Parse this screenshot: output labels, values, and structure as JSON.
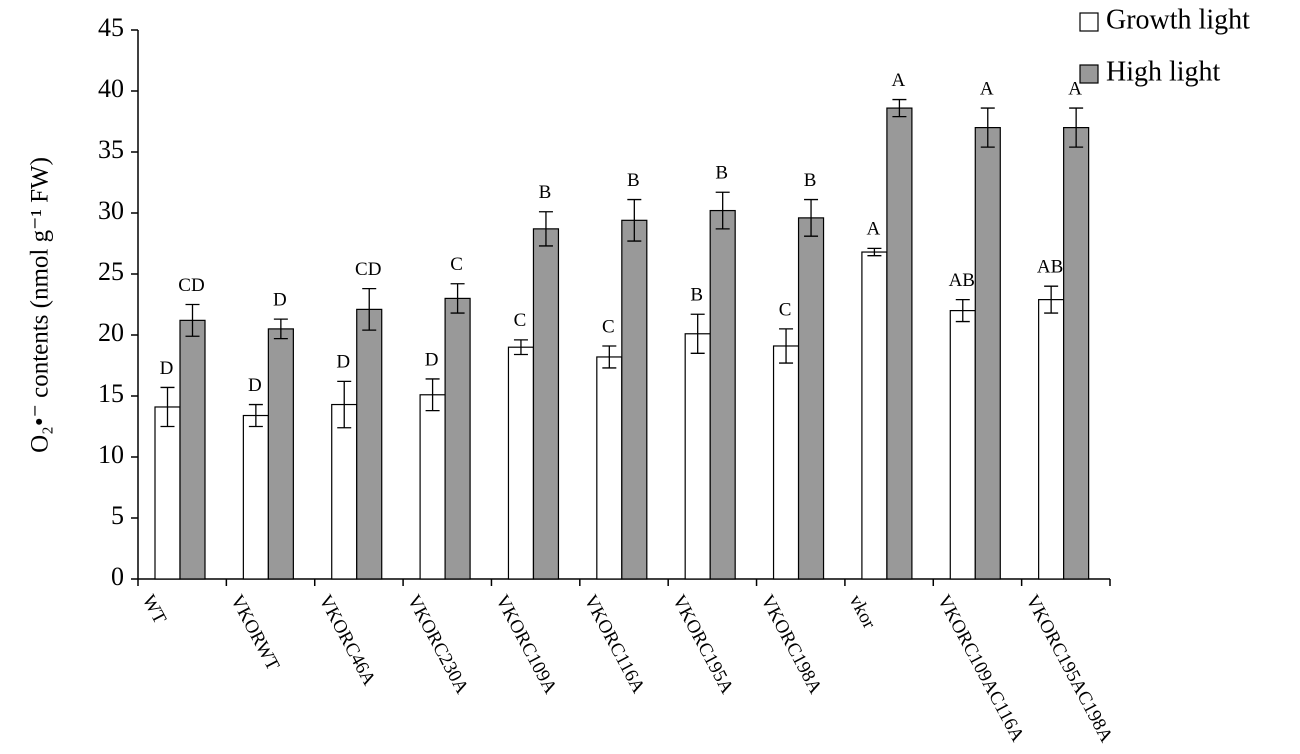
{
  "chart_data": {
    "type": "bar",
    "y_label": "O₂•⁻ contents (nmol g⁻¹ FW)",
    "categories": [
      "WT",
      "VKORWT",
      "VKORC46A",
      "VKORC230A",
      "VKORC109A",
      "VKORC116A",
      "VKORC195A",
      "VKORC198A",
      "vkor",
      "VKORC109AC116A",
      "VKORC195AC198A"
    ],
    "series": [
      {
        "name": "Growth light",
        "color": "#ffffff",
        "values": [
          14.1,
          13.4,
          14.3,
          15.1,
          19.0,
          18.2,
          20.1,
          19.1,
          26.8,
          22.0,
          22.9
        ],
        "errors": [
          1.6,
          0.9,
          1.9,
          1.3,
          0.6,
          0.9,
          1.6,
          1.4,
          0.3,
          0.9,
          1.1
        ],
        "letters": [
          "D",
          "D",
          "D",
          "D",
          "C",
          "C",
          "B",
          "C",
          "A",
          "AB",
          "AB"
        ]
      },
      {
        "name": "High light",
        "color": "#999999",
        "values": [
          21.2,
          20.5,
          22.1,
          23.0,
          28.7,
          29.4,
          30.2,
          29.6,
          38.6,
          37.0,
          37.0
        ],
        "errors": [
          1.3,
          0.8,
          1.7,
          1.2,
          1.4,
          1.7,
          1.5,
          1.5,
          0.7,
          1.6,
          1.6
        ],
        "letters": [
          "CD",
          "D",
          "CD",
          "C",
          "B",
          "B",
          "B",
          "B",
          "A",
          "A",
          "A"
        ]
      }
    ],
    "ylim": [
      0,
      45
    ],
    "yticks": [
      0,
      5,
      10,
      15,
      20,
      25,
      30,
      35,
      40,
      45
    ]
  }
}
